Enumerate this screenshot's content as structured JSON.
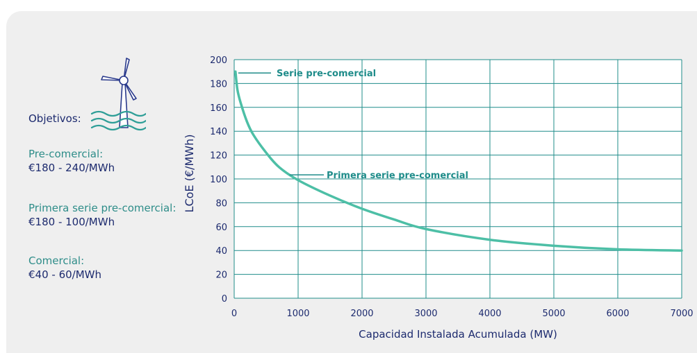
{
  "sidebar": {
    "objectives_label": "Objetivos:",
    "targets": [
      {
        "name": "Pre-comercial:",
        "range": "€180 - 240/MWh"
      },
      {
        "name": "Primera serie pre-comercial:",
        "range": "€180 - 100/MWh"
      },
      {
        "name": "Comercial:",
        "range": "€40 - 60/MWh"
      }
    ]
  },
  "colors": {
    "curve": "#4dbfa6",
    "grid": "#1f8c8a",
    "text_dark": "#1c2a6e",
    "text_teal": "#2e8d89",
    "panel_bg": "#efefef",
    "annotation": "#1f8c8a",
    "icon": "#2a3a8c",
    "waves": "#2e9e97"
  },
  "chart_data": {
    "type": "line",
    "title": "",
    "xlabel": "Capacidad Instalada Acumulada (MW)",
    "ylabel": "LCoE (€/MWh)",
    "xlim": [
      0,
      7000
    ],
    "ylim": [
      0,
      200
    ],
    "x_ticks": [
      0,
      1000,
      2000,
      3000,
      4000,
      5000,
      6000,
      7000
    ],
    "y_ticks": [
      0,
      20,
      40,
      60,
      80,
      100,
      120,
      140,
      160,
      180,
      200
    ],
    "grid": true,
    "series": [
      {
        "x": [
          20,
          50,
          100,
          200,
          300,
          500,
          700,
          1000,
          1500,
          2000,
          2500,
          3000,
          4000,
          5000,
          6000,
          7000
        ],
        "y": [
          190,
          175,
          164,
          148,
          137,
          122,
          110,
          99,
          86,
          75,
          66,
          58,
          49,
          44,
          41,
          40
        ]
      }
    ],
    "annotations": [
      {
        "text": "Serie pre-comercial",
        "x": 20,
        "y": 190
      },
      {
        "text": "Primera serie pre-comercial",
        "x": 900,
        "y": 104
      }
    ]
  }
}
